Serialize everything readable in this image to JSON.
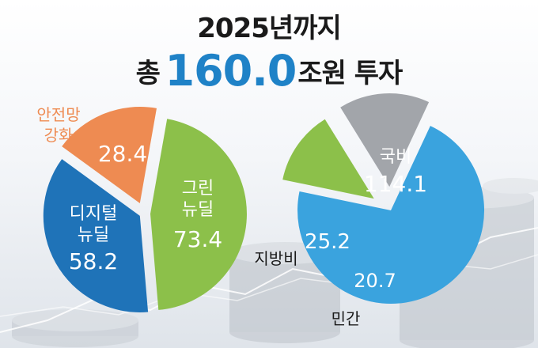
{
  "title": {
    "line1": "2025년까지",
    "line2_prefix": "총",
    "line2_number": "160.0",
    "line2_suffix": "조원 투자"
  },
  "colors": {
    "green": "#8cc04a",
    "orange": "#ee8b52",
    "blue_dark": "#1f73b8",
    "blue_light": "#3aa3de",
    "gray": "#a2a5aa",
    "label_orange": "#ee8b52",
    "title_blue": "#1f82c7"
  },
  "chart_data": [
    {
      "type": "pie",
      "title": "",
      "slices": [
        {
          "label": "그린 뉴딜",
          "label_lines": [
            "그린",
            "뉴딜"
          ],
          "value": 73.4,
          "value_text": "73.4",
          "color": "#8cc04a"
        },
        {
          "label": "디지털 뉴딜",
          "label_lines": [
            "디지털",
            "뉴딜"
          ],
          "value": 58.2,
          "value_text": "58.2",
          "color": "#1f73b8"
        },
        {
          "label": "안전망 강화",
          "label_lines": [
            "안전망",
            "강화"
          ],
          "value": 28.4,
          "value_text": "28.4",
          "color": "#ee8b52"
        }
      ],
      "total": 160.0
    },
    {
      "type": "pie",
      "title": "",
      "slices": [
        {
          "label": "국비",
          "label_lines": [
            "국비"
          ],
          "value": 114.1,
          "value_text": "114.1",
          "color": "#3aa3de"
        },
        {
          "label": "민간",
          "label_lines": [
            "민간"
          ],
          "value": 20.7,
          "value_text": "20.7",
          "color": "#8cc04a"
        },
        {
          "label": "지방비",
          "label_lines": [
            "지방비"
          ],
          "value": 25.2,
          "value_text": "25.2",
          "color": "#a2a5aa"
        }
      ],
      "total": 160.0
    }
  ]
}
